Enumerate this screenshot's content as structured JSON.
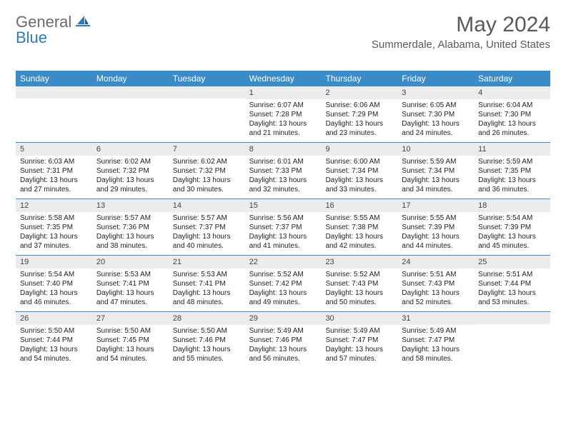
{
  "logo": {
    "general": "General",
    "blue": "Blue"
  },
  "title": "May 2024",
  "location": "Summerdale, Alabama, United States",
  "colors": {
    "header_bg": "#3b8bc9",
    "header_text": "#ffffff",
    "daynum_bg": "#ececec",
    "text": "#222222",
    "title_color": "#595959",
    "logo_gray": "#6a6a6a",
    "logo_blue": "#2b7bbd",
    "row_border": "#3b8bc9"
  },
  "dow": [
    "Sunday",
    "Monday",
    "Tuesday",
    "Wednesday",
    "Thursday",
    "Friday",
    "Saturday"
  ],
  "weeks": [
    [
      null,
      null,
      null,
      {
        "n": "1",
        "sr": "Sunrise: 6:07 AM",
        "ss": "Sunset: 7:28 PM",
        "d1": "Daylight: 13 hours",
        "d2": "and 21 minutes."
      },
      {
        "n": "2",
        "sr": "Sunrise: 6:06 AM",
        "ss": "Sunset: 7:29 PM",
        "d1": "Daylight: 13 hours",
        "d2": "and 23 minutes."
      },
      {
        "n": "3",
        "sr": "Sunrise: 6:05 AM",
        "ss": "Sunset: 7:30 PM",
        "d1": "Daylight: 13 hours",
        "d2": "and 24 minutes."
      },
      {
        "n": "4",
        "sr": "Sunrise: 6:04 AM",
        "ss": "Sunset: 7:30 PM",
        "d1": "Daylight: 13 hours",
        "d2": "and 26 minutes."
      }
    ],
    [
      {
        "n": "5",
        "sr": "Sunrise: 6:03 AM",
        "ss": "Sunset: 7:31 PM",
        "d1": "Daylight: 13 hours",
        "d2": "and 27 minutes."
      },
      {
        "n": "6",
        "sr": "Sunrise: 6:02 AM",
        "ss": "Sunset: 7:32 PM",
        "d1": "Daylight: 13 hours",
        "d2": "and 29 minutes."
      },
      {
        "n": "7",
        "sr": "Sunrise: 6:02 AM",
        "ss": "Sunset: 7:32 PM",
        "d1": "Daylight: 13 hours",
        "d2": "and 30 minutes."
      },
      {
        "n": "8",
        "sr": "Sunrise: 6:01 AM",
        "ss": "Sunset: 7:33 PM",
        "d1": "Daylight: 13 hours",
        "d2": "and 32 minutes."
      },
      {
        "n": "9",
        "sr": "Sunrise: 6:00 AM",
        "ss": "Sunset: 7:34 PM",
        "d1": "Daylight: 13 hours",
        "d2": "and 33 minutes."
      },
      {
        "n": "10",
        "sr": "Sunrise: 5:59 AM",
        "ss": "Sunset: 7:34 PM",
        "d1": "Daylight: 13 hours",
        "d2": "and 34 minutes."
      },
      {
        "n": "11",
        "sr": "Sunrise: 5:59 AM",
        "ss": "Sunset: 7:35 PM",
        "d1": "Daylight: 13 hours",
        "d2": "and 36 minutes."
      }
    ],
    [
      {
        "n": "12",
        "sr": "Sunrise: 5:58 AM",
        "ss": "Sunset: 7:35 PM",
        "d1": "Daylight: 13 hours",
        "d2": "and 37 minutes."
      },
      {
        "n": "13",
        "sr": "Sunrise: 5:57 AM",
        "ss": "Sunset: 7:36 PM",
        "d1": "Daylight: 13 hours",
        "d2": "and 38 minutes."
      },
      {
        "n": "14",
        "sr": "Sunrise: 5:57 AM",
        "ss": "Sunset: 7:37 PM",
        "d1": "Daylight: 13 hours",
        "d2": "and 40 minutes."
      },
      {
        "n": "15",
        "sr": "Sunrise: 5:56 AM",
        "ss": "Sunset: 7:37 PM",
        "d1": "Daylight: 13 hours",
        "d2": "and 41 minutes."
      },
      {
        "n": "16",
        "sr": "Sunrise: 5:55 AM",
        "ss": "Sunset: 7:38 PM",
        "d1": "Daylight: 13 hours",
        "d2": "and 42 minutes."
      },
      {
        "n": "17",
        "sr": "Sunrise: 5:55 AM",
        "ss": "Sunset: 7:39 PM",
        "d1": "Daylight: 13 hours",
        "d2": "and 44 minutes."
      },
      {
        "n": "18",
        "sr": "Sunrise: 5:54 AM",
        "ss": "Sunset: 7:39 PM",
        "d1": "Daylight: 13 hours",
        "d2": "and 45 minutes."
      }
    ],
    [
      {
        "n": "19",
        "sr": "Sunrise: 5:54 AM",
        "ss": "Sunset: 7:40 PM",
        "d1": "Daylight: 13 hours",
        "d2": "and 46 minutes."
      },
      {
        "n": "20",
        "sr": "Sunrise: 5:53 AM",
        "ss": "Sunset: 7:41 PM",
        "d1": "Daylight: 13 hours",
        "d2": "and 47 minutes."
      },
      {
        "n": "21",
        "sr": "Sunrise: 5:53 AM",
        "ss": "Sunset: 7:41 PM",
        "d1": "Daylight: 13 hours",
        "d2": "and 48 minutes."
      },
      {
        "n": "22",
        "sr": "Sunrise: 5:52 AM",
        "ss": "Sunset: 7:42 PM",
        "d1": "Daylight: 13 hours",
        "d2": "and 49 minutes."
      },
      {
        "n": "23",
        "sr": "Sunrise: 5:52 AM",
        "ss": "Sunset: 7:43 PM",
        "d1": "Daylight: 13 hours",
        "d2": "and 50 minutes."
      },
      {
        "n": "24",
        "sr": "Sunrise: 5:51 AM",
        "ss": "Sunset: 7:43 PM",
        "d1": "Daylight: 13 hours",
        "d2": "and 52 minutes."
      },
      {
        "n": "25",
        "sr": "Sunrise: 5:51 AM",
        "ss": "Sunset: 7:44 PM",
        "d1": "Daylight: 13 hours",
        "d2": "and 53 minutes."
      }
    ],
    [
      {
        "n": "26",
        "sr": "Sunrise: 5:50 AM",
        "ss": "Sunset: 7:44 PM",
        "d1": "Daylight: 13 hours",
        "d2": "and 54 minutes."
      },
      {
        "n": "27",
        "sr": "Sunrise: 5:50 AM",
        "ss": "Sunset: 7:45 PM",
        "d1": "Daylight: 13 hours",
        "d2": "and 54 minutes."
      },
      {
        "n": "28",
        "sr": "Sunrise: 5:50 AM",
        "ss": "Sunset: 7:46 PM",
        "d1": "Daylight: 13 hours",
        "d2": "and 55 minutes."
      },
      {
        "n": "29",
        "sr": "Sunrise: 5:49 AM",
        "ss": "Sunset: 7:46 PM",
        "d1": "Daylight: 13 hours",
        "d2": "and 56 minutes."
      },
      {
        "n": "30",
        "sr": "Sunrise: 5:49 AM",
        "ss": "Sunset: 7:47 PM",
        "d1": "Daylight: 13 hours",
        "d2": "and 57 minutes."
      },
      {
        "n": "31",
        "sr": "Sunrise: 5:49 AM",
        "ss": "Sunset: 7:47 PM",
        "d1": "Daylight: 13 hours",
        "d2": "and 58 minutes."
      },
      null
    ]
  ]
}
